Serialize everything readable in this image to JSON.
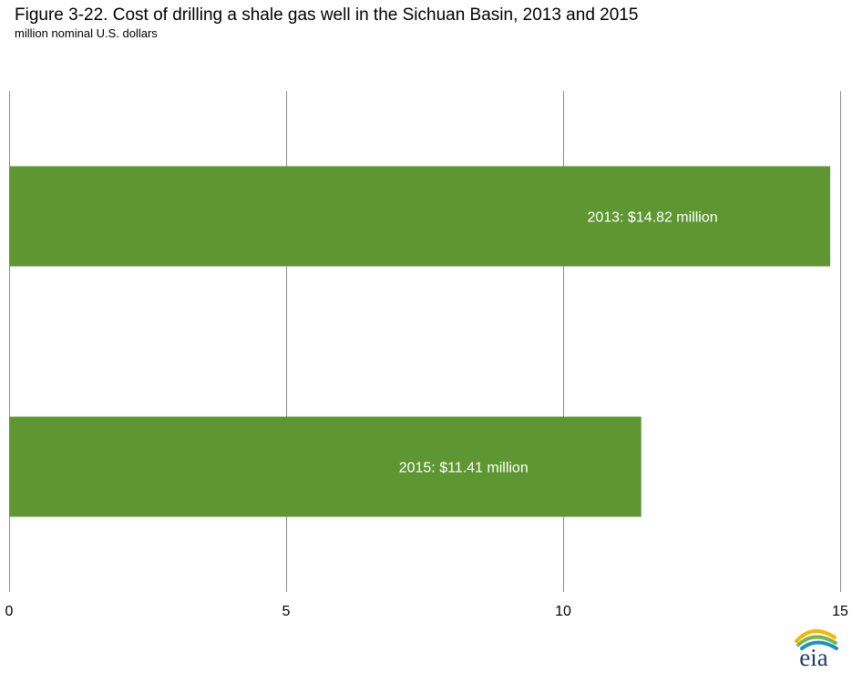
{
  "header": {
    "title": "Figure 3-22. Cost of drilling a shale gas well in the Sichuan Basin, 2013 and 2015",
    "subtitle": "million nominal U.S. dollars"
  },
  "logo": {
    "text": "eia",
    "icon": "eia-logo"
  },
  "chart_data": {
    "type": "bar",
    "orientation": "horizontal",
    "categories": [
      "2013",
      "2015"
    ],
    "values": [
      14.82,
      11.41
    ],
    "data_labels": [
      "2013: $14.82 million",
      "2015: $11.41 million"
    ],
    "title": "Figure 3-22. Cost of drilling a shale gas well in the Sichuan Basin, 2013 and 2015",
    "subtitle": "million nominal U.S. dollars",
    "xlim": [
      0,
      15
    ],
    "x_ticks": [
      0,
      5,
      10,
      15
    ],
    "grid": true,
    "legend": "none",
    "colors": {
      "bar": "#5e9732",
      "grid": "#8c8c8c",
      "label": "#ffffff"
    }
  }
}
